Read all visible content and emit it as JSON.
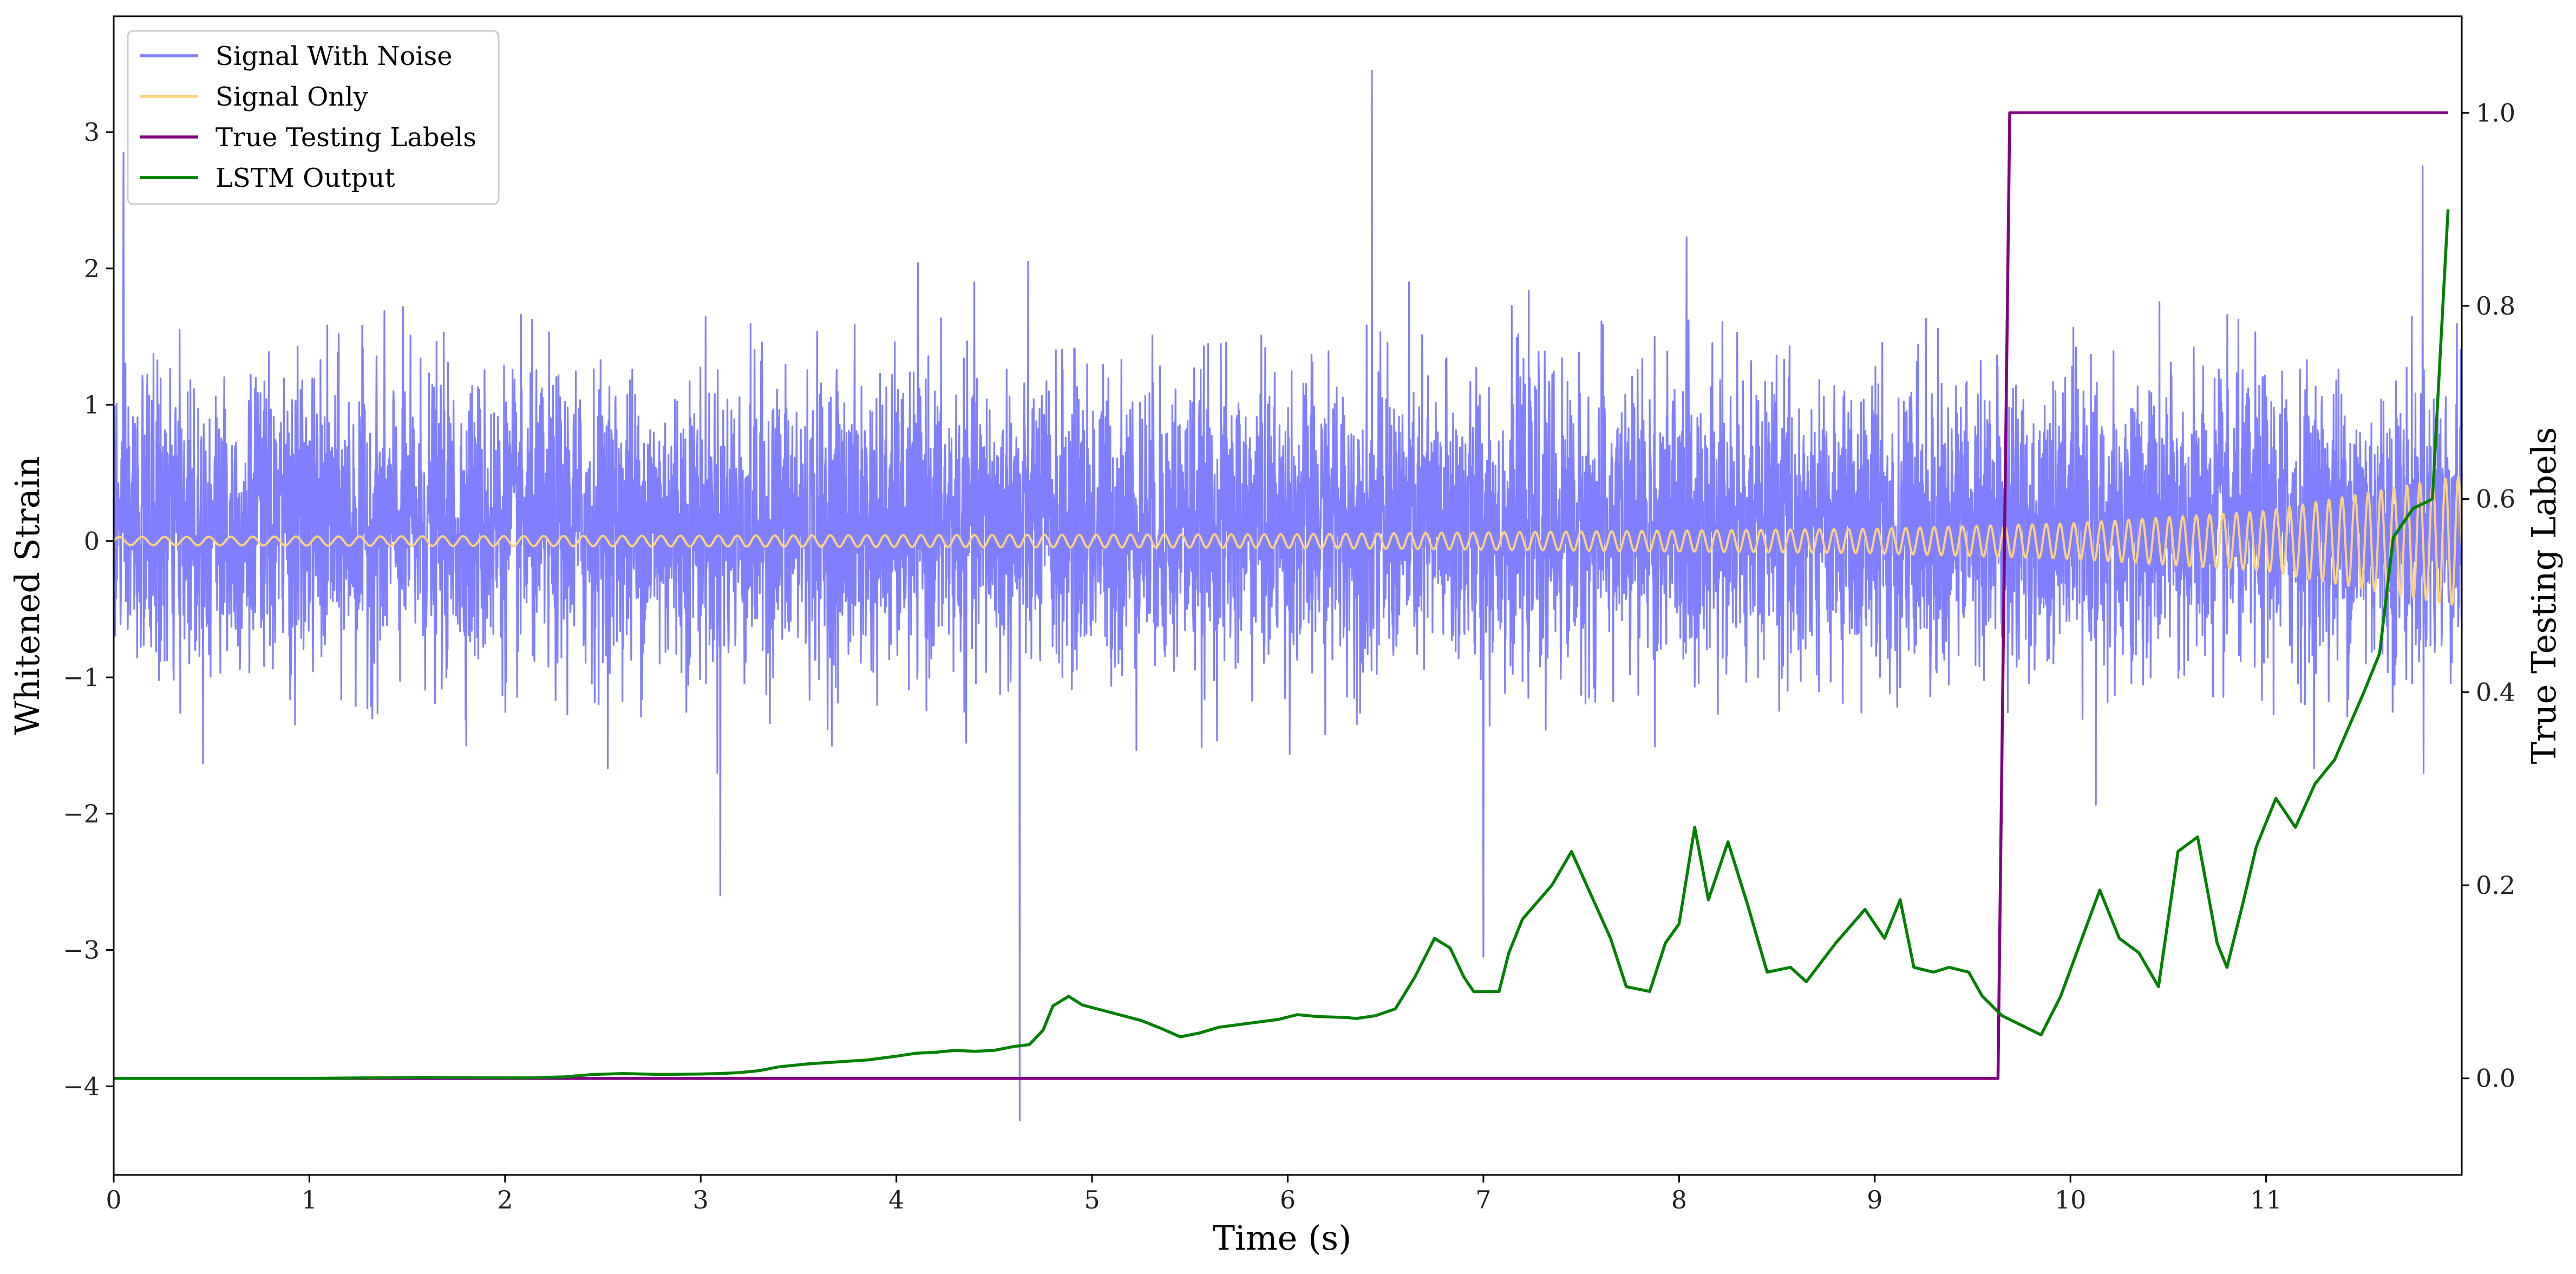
{
  "chart_data": {
    "type": "line",
    "title": "",
    "xlabel": "Time (s)",
    "ylabel": "Whitened Strain",
    "y2label": "True Testing Labels",
    "xlim": [
      0,
      12.0
    ],
    "ylim": [
      -4.65,
      3.85
    ],
    "y2lim": [
      -0.1,
      1.1
    ],
    "x_ticks": [
      0,
      1,
      2,
      3,
      4,
      5,
      6,
      7,
      8,
      9,
      10,
      11
    ],
    "y_ticks": [
      -4,
      -3,
      -2,
      -1,
      0,
      1,
      2,
      3
    ],
    "y2_ticks": [
      0.0,
      0.2,
      0.4,
      0.6,
      0.8,
      1.0
    ],
    "y_tick_labels": [
      "−4",
      "−3",
      "−2",
      "−1",
      "0",
      "1",
      "2",
      "3"
    ],
    "y2_tick_labels": [
      "0.0",
      "0.2",
      "0.4",
      "0.6",
      "0.8",
      "1.0"
    ],
    "legend_position": "top-left",
    "grid": false,
    "series": [
      {
        "name": "Signal With Noise",
        "axis": "left",
        "color": "#7f7fff",
        "description_values": {
          "typical_band": [
            -1.2,
            1.6
          ],
          "outlier_peaks": [
            [
              6.43,
              3.45
            ],
            [
              4.63,
              -4.25
            ],
            [
              0.05,
              2.85
            ],
            [
              11.8,
              2.75
            ],
            [
              3.1,
              -2.6
            ],
            [
              7.0,
              -3.05
            ]
          ]
        }
      },
      {
        "name": "Signal Only",
        "axis": "left",
        "color": "#ffd27f",
        "amplitude_at": [
          [
            0,
            0.03
          ],
          [
            6,
            0.05
          ],
          [
            9,
            0.09
          ],
          [
            10,
            0.13
          ],
          [
            11,
            0.22
          ],
          [
            12,
            0.48
          ]
        ]
      },
      {
        "name": "True Testing Labels",
        "axis": "right",
        "color": "#800080",
        "x": [
          0,
          9.63,
          9.69,
          11.93
        ],
        "y": [
          0.0,
          0.0,
          1.0,
          1.0
        ]
      },
      {
        "name": "LSTM Output",
        "axis": "right",
        "color": "#008000",
        "x": [
          0,
          0.5,
          1.0,
          1.3,
          1.55,
          1.8,
          2.1,
          2.3,
          2.45,
          2.6,
          2.8,
          3.0,
          3.1,
          3.2,
          3.3,
          3.4,
          3.55,
          3.7,
          3.85,
          4.0,
          4.1,
          4.2,
          4.3,
          4.4,
          4.5,
          4.6,
          4.68,
          4.75,
          4.8,
          4.88,
          4.95,
          5.1,
          5.25,
          5.35,
          5.45,
          5.55,
          5.65,
          5.8,
          5.95,
          6.05,
          6.15,
          6.3,
          6.35,
          6.45,
          6.55,
          6.65,
          6.75,
          6.83,
          6.9,
          6.95,
          7.08,
          7.13,
          7.2,
          7.35,
          7.45,
          7.55,
          7.65,
          7.73,
          7.85,
          7.93,
          8.0,
          8.08,
          8.15,
          8.25,
          8.35,
          8.45,
          8.57,
          8.65,
          8.8,
          8.95,
          9.05,
          9.13,
          9.2,
          9.3,
          9.38,
          9.48,
          9.55,
          9.65,
          9.75,
          9.85,
          9.95,
          10.05,
          10.15,
          10.25,
          10.35,
          10.45,
          10.55,
          10.65,
          10.75,
          10.8,
          10.88,
          10.95,
          11.05,
          11.15,
          11.25,
          11.35,
          11.5,
          11.58,
          11.65,
          11.75,
          11.85,
          11.93
        ],
        "y": [
          0.0,
          0.0,
          0.0,
          0.0005,
          0.001,
          0.0008,
          0.0005,
          0.0015,
          0.004,
          0.005,
          0.004,
          0.0045,
          0.005,
          0.006,
          0.008,
          0.012,
          0.015,
          0.017,
          0.019,
          0.023,
          0.026,
          0.027,
          0.029,
          0.028,
          0.029,
          0.033,
          0.035,
          0.05,
          0.075,
          0.085,
          0.076,
          0.068,
          0.06,
          0.052,
          0.043,
          0.047,
          0.053,
          0.057,
          0.061,
          0.066,
          0.064,
          0.063,
          0.062,
          0.065,
          0.072,
          0.105,
          0.145,
          0.135,
          0.105,
          0.09,
          0.09,
          0.13,
          0.165,
          0.2,
          0.235,
          0.19,
          0.145,
          0.095,
          0.09,
          0.14,
          0.16,
          0.26,
          0.185,
          0.245,
          0.18,
          0.11,
          0.115,
          0.1,
          0.14,
          0.175,
          0.145,
          0.185,
          0.115,
          0.11,
          0.115,
          0.11,
          0.085,
          0.065,
          0.055,
          0.045,
          0.085,
          0.14,
          0.195,
          0.145,
          0.13,
          0.095,
          0.235,
          0.25,
          0.14,
          0.115,
          0.18,
          0.24,
          0.29,
          0.26,
          0.305,
          0.33,
          0.4,
          0.44,
          0.56,
          0.59,
          0.6,
          0.9
        ]
      }
    ]
  }
}
